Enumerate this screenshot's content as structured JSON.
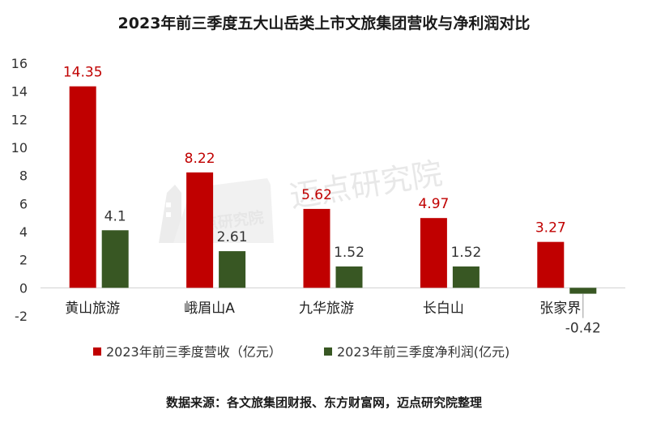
{
  "title": "2023年前三季度五大山岳类上市文旅集团营收与净利润对比",
  "watermark": "迈点研究院",
  "watermark_small": "迈点研究院",
  "source": "数据来源：各文旅集团财报、东方财富网，迈点研究院整理",
  "colors": {
    "revenue": "#c00000",
    "profit": "#385723",
    "revenue_label": "#c00000",
    "profit_label": "#333333",
    "axis": "#d0d0d0"
  },
  "chart_data": {
    "type": "bar",
    "categories": [
      "黄山旅游",
      "峨眉山A",
      "九华旅游",
      "长白山",
      "张家界"
    ],
    "series": [
      {
        "name": "2023年前三季度营收（亿元）",
        "values": [
          14.35,
          8.22,
          5.62,
          4.97,
          3.27
        ],
        "labels": [
          "14.35",
          "8.22",
          "5.62",
          "4.97",
          "3.27"
        ]
      },
      {
        "name": "2023年前三季度净利润(亿元)",
        "values": [
          4.1,
          2.61,
          1.52,
          1.52,
          -0.42
        ],
        "labels": [
          "4.1",
          "2.61",
          "1.52",
          "1.52",
          "-0.42"
        ]
      }
    ],
    "yticks": [
      "-2",
      "0",
      "2",
      "4",
      "6",
      "8",
      "10",
      "12",
      "14",
      "16"
    ],
    "ylim": [
      -2,
      16
    ],
    "legend_position": "bottom"
  }
}
